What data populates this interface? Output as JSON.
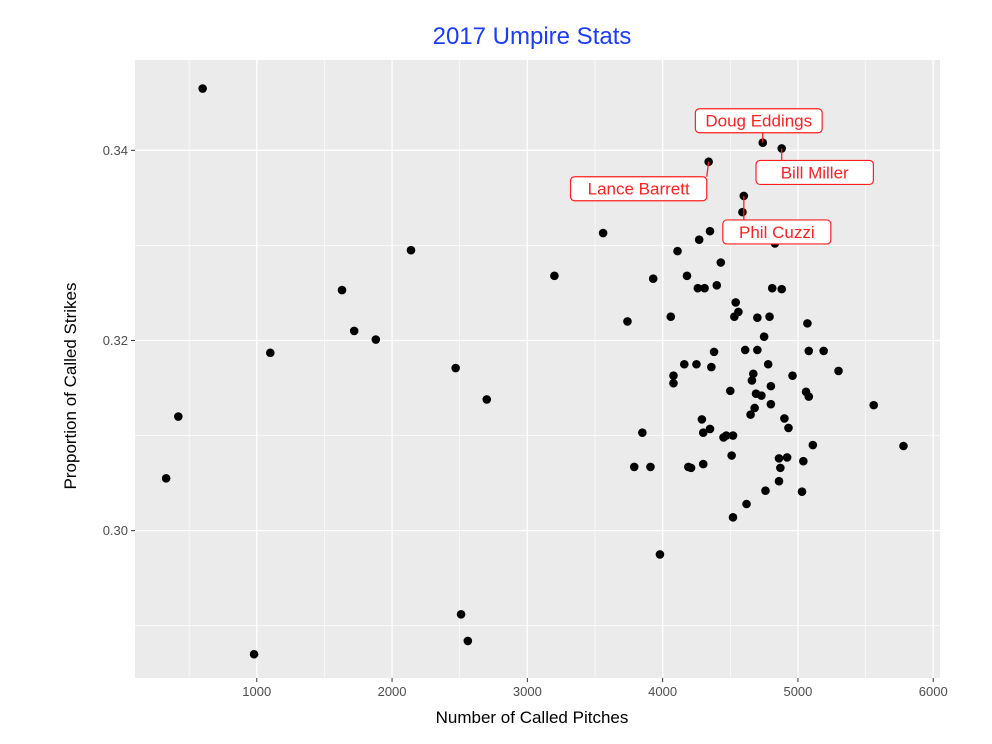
{
  "chart_data": {
    "type": "scatter",
    "title": "2017 Umpire Stats",
    "xlabel": "Number of Called Pitches",
    "ylabel": "Proportion of Called Strikes",
    "xlim": [
      100,
      6050
    ],
    "ylim": [
      0.2845,
      0.3495
    ],
    "xticks": [
      1000,
      2000,
      3000,
      4000,
      5000,
      6000
    ],
    "xtick_labels": [
      "1000",
      "2000",
      "3000",
      "4000",
      "5000",
      "6000"
    ],
    "yticks": [
      0.3,
      0.32,
      0.34
    ],
    "ytick_labels": [
      "0.30",
      "0.32",
      "0.34"
    ],
    "grid": true,
    "background": "#ebebeb",
    "title_color": "#1a3cff",
    "point_color": "#000000",
    "label_color": "#ff2020",
    "points": [
      {
        "x": 600,
        "y": 0.3465
      },
      {
        "x": 330,
        "y": 0.3055
      },
      {
        "x": 420,
        "y": 0.312
      },
      {
        "x": 980,
        "y": 0.287
      },
      {
        "x": 1100,
        "y": 0.3187
      },
      {
        "x": 1630,
        "y": 0.3253
      },
      {
        "x": 1720,
        "y": 0.321
      },
      {
        "x": 1880,
        "y": 0.3201
      },
      {
        "x": 2140,
        "y": 0.3295
      },
      {
        "x": 2470,
        "y": 0.3171
      },
      {
        "x": 2510,
        "y": 0.2912
      },
      {
        "x": 2560,
        "y": 0.2884
      },
      {
        "x": 2700,
        "y": 0.3138
      },
      {
        "x": 3200,
        "y": 0.3268
      },
      {
        "x": 3560,
        "y": 0.3313
      },
      {
        "x": 3740,
        "y": 0.322
      },
      {
        "x": 3790,
        "y": 0.3067
      },
      {
        "x": 3850,
        "y": 0.3103
      },
      {
        "x": 3910,
        "y": 0.3067
      },
      {
        "x": 3930,
        "y": 0.3265
      },
      {
        "x": 3980,
        "y": 0.2975
      },
      {
        "x": 4060,
        "y": 0.3225
      },
      {
        "x": 4080,
        "y": 0.3155
      },
      {
        "x": 4080,
        "y": 0.3163
      },
      {
        "x": 4110,
        "y": 0.3294
      },
      {
        "x": 4160,
        "y": 0.3175
      },
      {
        "x": 4180,
        "y": 0.3268
      },
      {
        "x": 4190,
        "y": 0.3067
      },
      {
        "x": 4210,
        "y": 0.3066
      },
      {
        "x": 4250,
        "y": 0.3175
      },
      {
        "x": 4260,
        "y": 0.3255
      },
      {
        "x": 4270,
        "y": 0.3306
      },
      {
        "x": 4290,
        "y": 0.3117
      },
      {
        "x": 4300,
        "y": 0.3103
      },
      {
        "x": 4310,
        "y": 0.3255
      },
      {
        "x": 4300,
        "y": 0.307
      },
      {
        "x": 4350,
        "y": 0.3315
      },
      {
        "x": 4350,
        "y": 0.3107
      },
      {
        "x": 4360,
        "y": 0.3172
      },
      {
        "x": 4380,
        "y": 0.3188
      },
      {
        "x": 4400,
        "y": 0.3258
      },
      {
        "x": 4430,
        "y": 0.3282
      },
      {
        "x": 4450,
        "y": 0.3098
      },
      {
        "x": 4470,
        "y": 0.31
      },
      {
        "x": 4500,
        "y": 0.3147
      },
      {
        "x": 4510,
        "y": 0.3079
      },
      {
        "x": 4520,
        "y": 0.3014
      },
      {
        "x": 4520,
        "y": 0.31
      },
      {
        "x": 4530,
        "y": 0.3225
      },
      {
        "x": 4540,
        "y": 0.324
      },
      {
        "x": 4560,
        "y": 0.323
      },
      {
        "x": 4590,
        "y": 0.3335
      },
      {
        "x": 4610,
        "y": 0.319
      },
      {
        "x": 4620,
        "y": 0.3028
      },
      {
        "x": 4650,
        "y": 0.3122
      },
      {
        "x": 4660,
        "y": 0.3158
      },
      {
        "x": 4670,
        "y": 0.3165
      },
      {
        "x": 4680,
        "y": 0.3129
      },
      {
        "x": 4690,
        "y": 0.3144
      },
      {
        "x": 4700,
        "y": 0.319
      },
      {
        "x": 4700,
        "y": 0.3224
      },
      {
        "x": 4730,
        "y": 0.3142
      },
      {
        "x": 4750,
        "y": 0.3204
      },
      {
        "x": 4760,
        "y": 0.3042
      },
      {
        "x": 4780,
        "y": 0.3175
      },
      {
        "x": 4790,
        "y": 0.3225
      },
      {
        "x": 4800,
        "y": 0.3152
      },
      {
        "x": 4800,
        "y": 0.3133
      },
      {
        "x": 4810,
        "y": 0.3255
      },
      {
        "x": 4830,
        "y": 0.3302
      },
      {
        "x": 4860,
        "y": 0.3076
      },
      {
        "x": 4860,
        "y": 0.3052
      },
      {
        "x": 4870,
        "y": 0.3066
      },
      {
        "x": 4880,
        "y": 0.3254
      },
      {
        "x": 4900,
        "y": 0.3118
      },
      {
        "x": 4920,
        "y": 0.3077
      },
      {
        "x": 4930,
        "y": 0.3108
      },
      {
        "x": 4960,
        "y": 0.3163
      },
      {
        "x": 5030,
        "y": 0.3041
      },
      {
        "x": 5040,
        "y": 0.3073
      },
      {
        "x": 5060,
        "y": 0.3146
      },
      {
        "x": 5070,
        "y": 0.3218
      },
      {
        "x": 5080,
        "y": 0.3141
      },
      {
        "x": 5080,
        "y": 0.3189
      },
      {
        "x": 5110,
        "y": 0.309
      },
      {
        "x": 5190,
        "y": 0.3189
      },
      {
        "x": 5300,
        "y": 0.3168
      },
      {
        "x": 5560,
        "y": 0.3132
      },
      {
        "x": 5780,
        "y": 0.3089
      },
      {
        "x": 4340,
        "y": 0.3388,
        "label": "Lance Barrett"
      },
      {
        "x": 4740,
        "y": 0.3408,
        "label": "Doug Eddings"
      },
      {
        "x": 4880,
        "y": 0.3402,
        "label": "Bill Miller"
      },
      {
        "x": 4600,
        "y": 0.3352,
        "label": "Phil Cuzzi"
      }
    ]
  }
}
